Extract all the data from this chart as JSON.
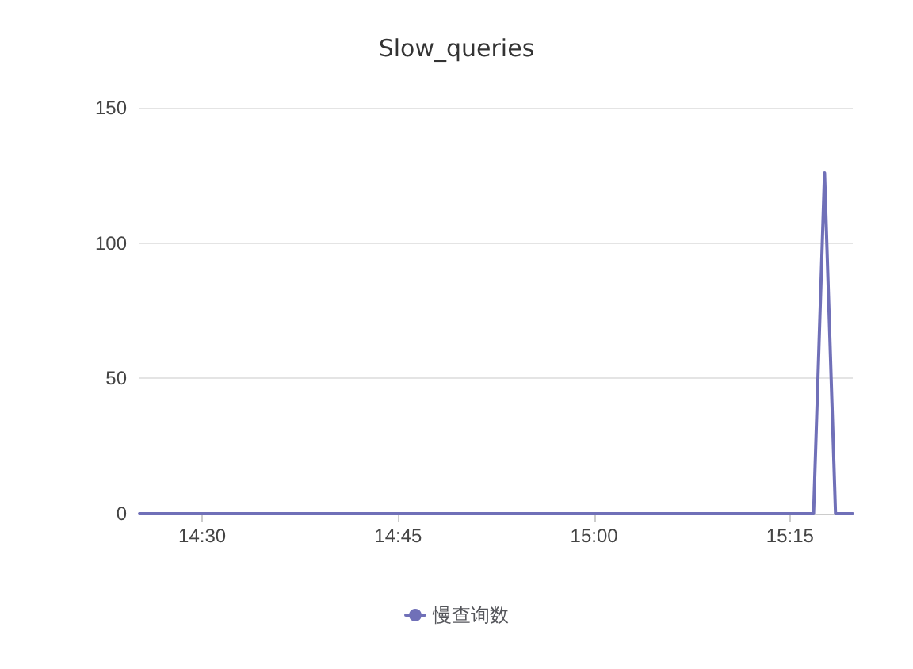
{
  "chart_data": {
    "type": "line",
    "title": "Slow_queries",
    "x": [
      14.42,
      14.6,
      14.8,
      15.0,
      15.2,
      15.28,
      15.294,
      15.308,
      15.33
    ],
    "series": [
      {
        "name": "慢查询数",
        "color": "#7070b8",
        "values": [
          0,
          0,
          0,
          0,
          0,
          0,
          126,
          0,
          0
        ]
      }
    ],
    "xlim": [
      14.42,
      15.33
    ],
    "xticks": [
      {
        "value": 14.5,
        "label": "14:30"
      },
      {
        "value": 14.75,
        "label": "14:45"
      },
      {
        "value": 15,
        "label": "15:00"
      },
      {
        "value": 15.25,
        "label": "15:15"
      }
    ],
    "ylim": [
      0,
      150
    ],
    "yticks": [
      0,
      50,
      100,
      150
    ],
    "grid": "y",
    "legend": "bottom",
    "marker": "none",
    "line_style": "solid"
  }
}
